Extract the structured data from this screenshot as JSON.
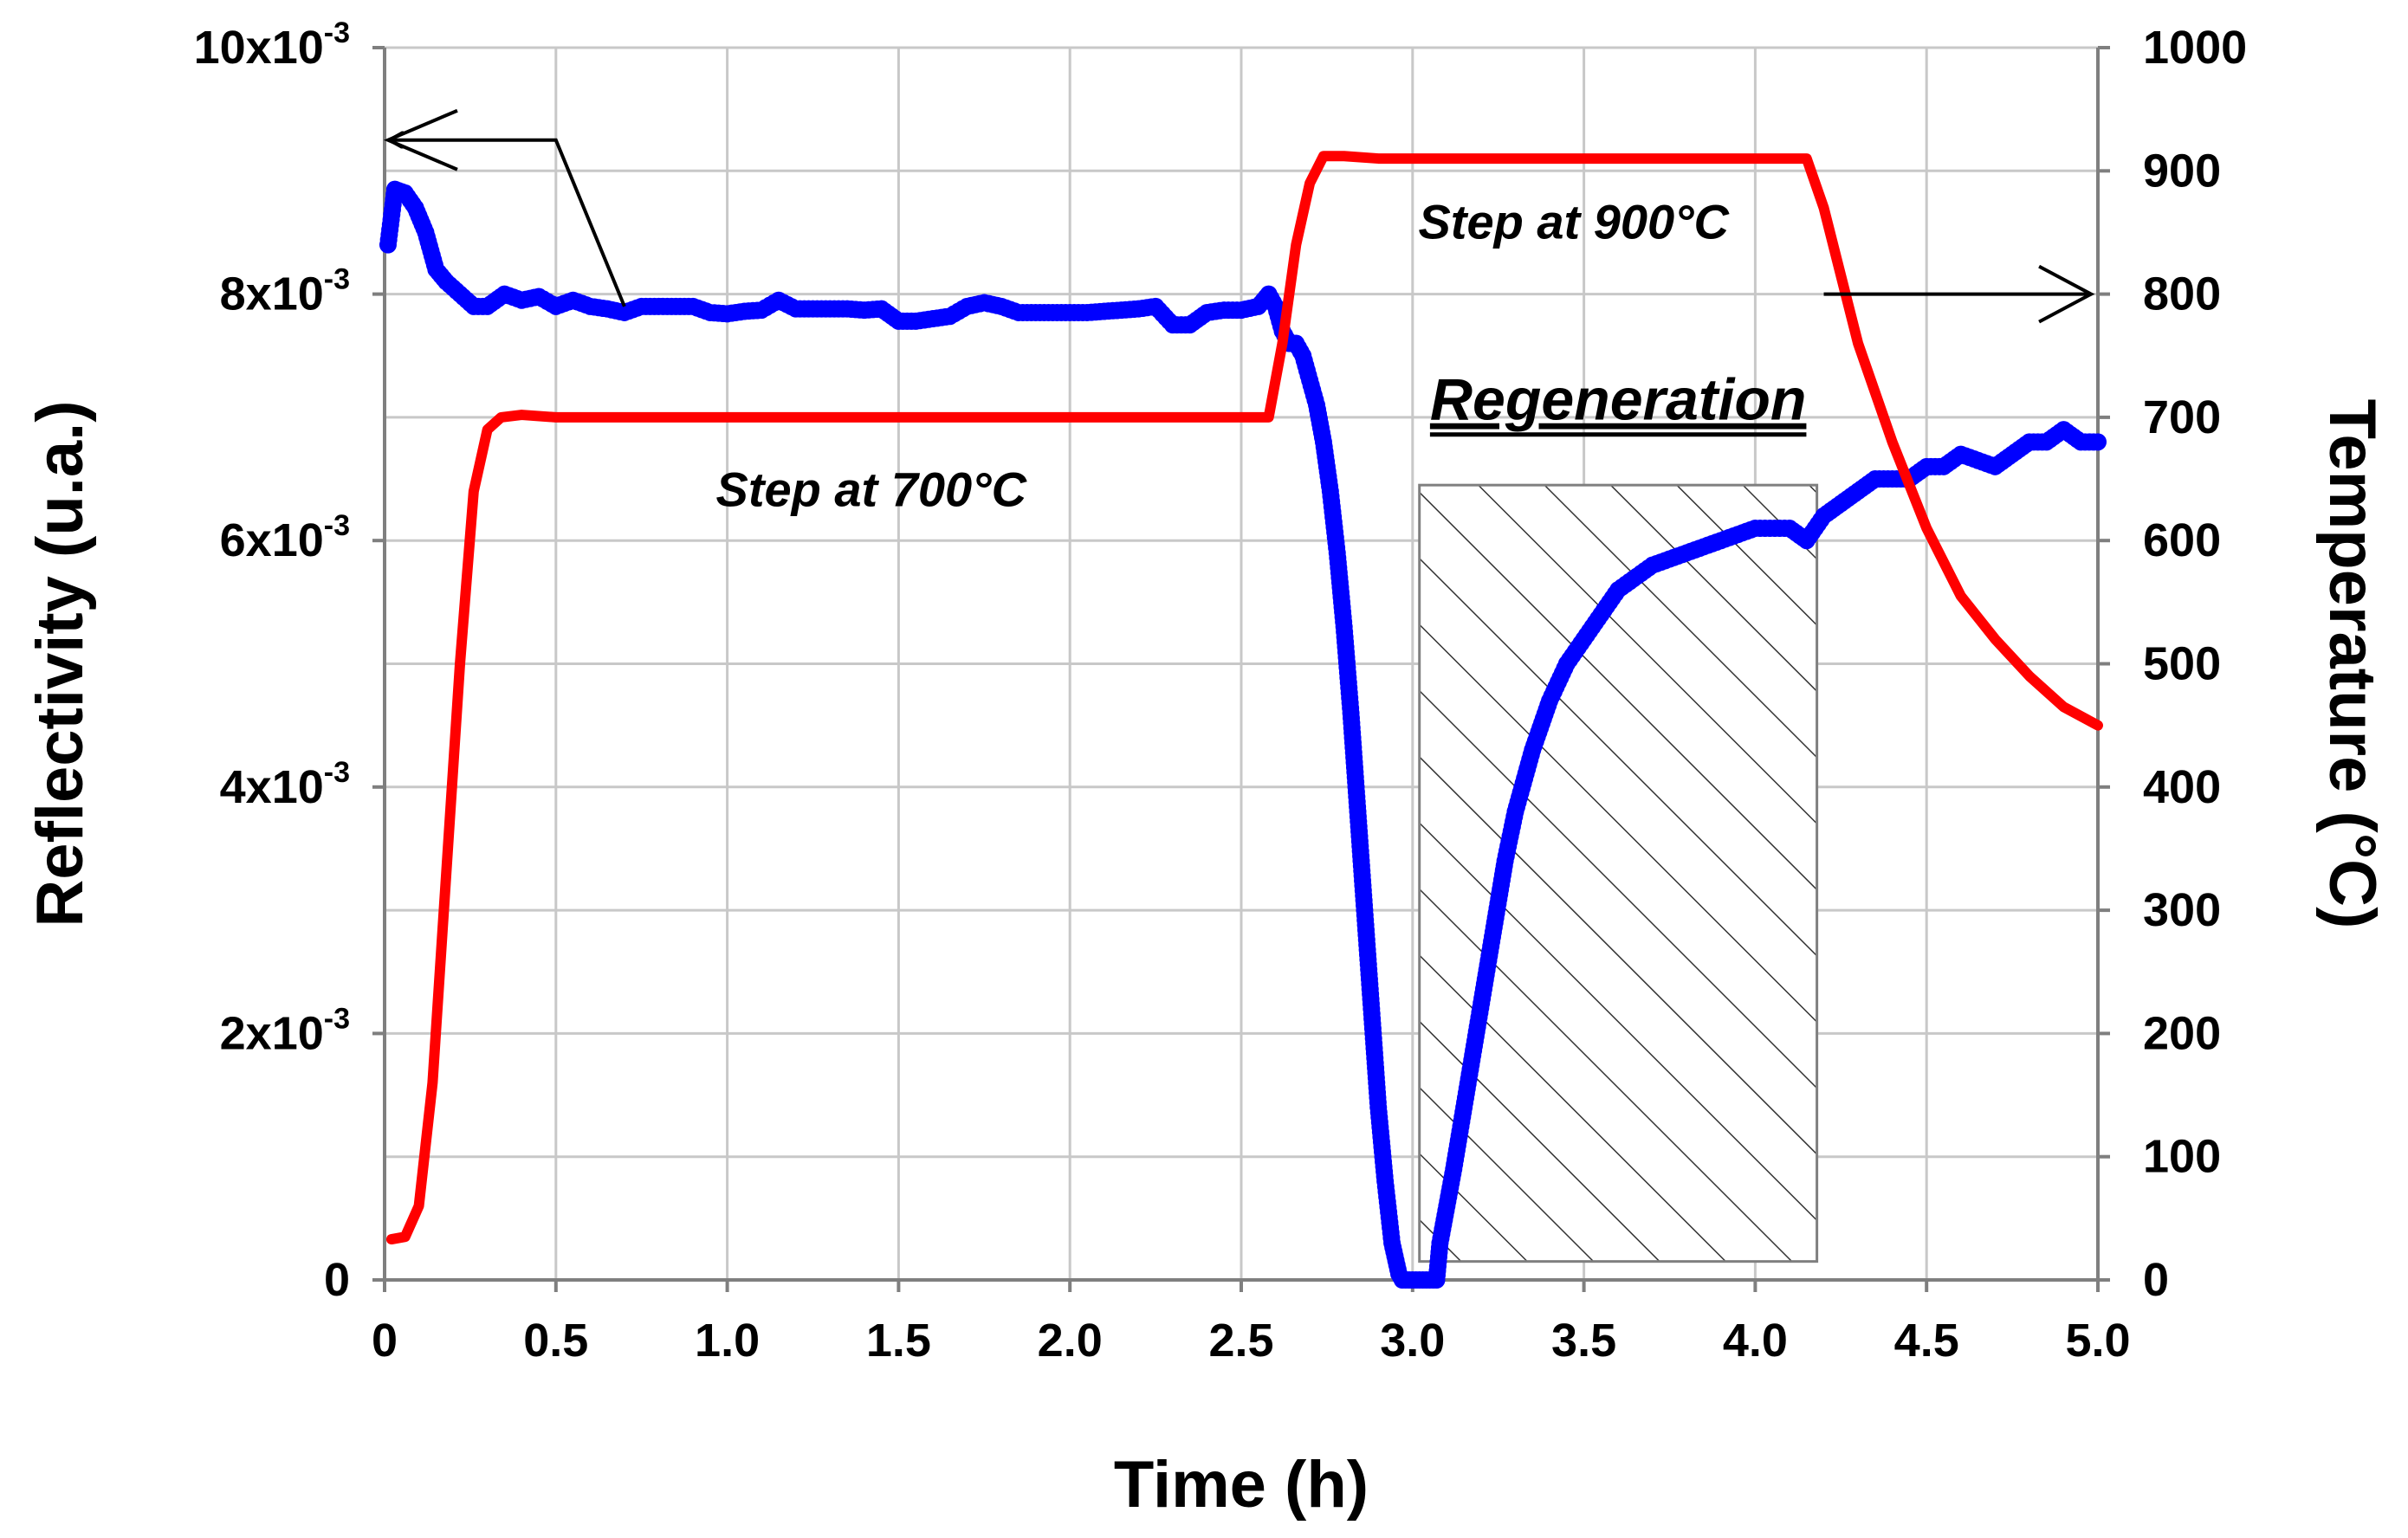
{
  "chart_data": {
    "type": "line",
    "title": "",
    "xlabel": "Time (h)",
    "ylabel": "Reflectivity (u.a.)",
    "y2label": "Temperature (°C)",
    "xlim": [
      0,
      5.0
    ],
    "ylim": [
      0,
      0.01
    ],
    "y2lim": [
      0,
      1000
    ],
    "grid": true,
    "x_ticks": [
      "0",
      "0.5",
      "1.0",
      "1.5",
      "2.0",
      "2.5",
      "3.0",
      "3.5",
      "4.0",
      "4.5",
      "5.0"
    ],
    "x_tick_values": [
      0,
      0.5,
      1.0,
      1.5,
      2.0,
      2.5,
      3.0,
      3.5,
      4.0,
      4.5,
      5.0
    ],
    "y_ticks": [
      {
        "value": 0,
        "base": "0",
        "exp": ""
      },
      {
        "value": 0.002,
        "base": "2x10",
        "exp": "-3"
      },
      {
        "value": 0.004,
        "base": "4x10",
        "exp": "-3"
      },
      {
        "value": 0.006,
        "base": "6x10",
        "exp": "-3"
      },
      {
        "value": 0.008,
        "base": "8x10",
        "exp": "-3"
      },
      {
        "value": 0.01,
        "base": "10x10",
        "exp": "-3"
      }
    ],
    "y2_ticks": [
      "0",
      "100",
      "200",
      "300",
      "400",
      "500",
      "600",
      "700",
      "800",
      "900",
      "1000"
    ],
    "y2_tick_values": [
      0,
      100,
      200,
      300,
      400,
      500,
      600,
      700,
      800,
      900,
      1000
    ],
    "series": [
      {
        "name": "Reflectivity",
        "axis": "left",
        "color": "#0000ff",
        "style": "markers",
        "x": [
          0.01,
          0.03,
          0.06,
          0.09,
          0.12,
          0.15,
          0.18,
          0.22,
          0.26,
          0.3,
          0.35,
          0.4,
          0.45,
          0.5,
          0.55,
          0.6,
          0.65,
          0.7,
          0.75,
          0.8,
          0.85,
          0.9,
          0.95,
          1.0,
          1.05,
          1.1,
          1.15,
          1.2,
          1.25,
          1.3,
          1.35,
          1.4,
          1.45,
          1.5,
          1.55,
          1.6,
          1.65,
          1.7,
          1.75,
          1.8,
          1.85,
          1.9,
          1.95,
          2.0,
          2.05,
          2.1,
          2.15,
          2.2,
          2.25,
          2.3,
          2.35,
          2.4,
          2.45,
          2.5,
          2.55,
          2.58,
          2.6,
          2.62,
          2.64,
          2.66,
          2.68,
          2.7,
          2.72,
          2.74,
          2.76,
          2.78,
          2.8,
          2.82,
          2.84,
          2.86,
          2.88,
          2.9,
          2.92,
          2.94,
          2.96,
          2.97,
          2.98,
          3.0,
          3.02,
          3.04,
          3.06,
          3.07,
          3.08,
          3.1,
          3.12,
          3.15,
          3.18,
          3.21,
          3.24,
          3.27,
          3.3,
          3.35,
          3.4,
          3.45,
          3.5,
          3.55,
          3.6,
          3.7,
          3.8,
          3.9,
          4.0,
          4.1,
          4.15,
          4.2,
          4.25,
          4.3,
          4.35,
          4.4,
          4.45,
          4.5,
          4.55,
          4.6,
          4.65,
          4.7,
          4.75,
          4.8,
          4.85,
          4.9,
          4.95,
          5.0
        ],
        "y": [
          0.0084,
          0.00885,
          0.00882,
          0.0087,
          0.0085,
          0.0082,
          0.0081,
          0.008,
          0.0079,
          0.0079,
          0.008,
          0.00795,
          0.00798,
          0.0079,
          0.00795,
          0.0079,
          0.00788,
          0.00785,
          0.0079,
          0.0079,
          0.0079,
          0.0079,
          0.00785,
          0.00784,
          0.00786,
          0.00787,
          0.00795,
          0.00788,
          0.00788,
          0.00788,
          0.00788,
          0.00787,
          0.00788,
          0.00778,
          0.00778,
          0.0078,
          0.00782,
          0.0079,
          0.00793,
          0.0079,
          0.00785,
          0.00785,
          0.00785,
          0.00785,
          0.00785,
          0.00786,
          0.00787,
          0.00788,
          0.0079,
          0.00775,
          0.00775,
          0.00785,
          0.00787,
          0.00787,
          0.0079,
          0.008,
          0.0079,
          0.0077,
          0.0076,
          0.0076,
          0.0075,
          0.0073,
          0.0071,
          0.0068,
          0.0064,
          0.0059,
          0.0053,
          0.0046,
          0.0038,
          0.003,
          0.0022,
          0.0014,
          0.0008,
          0.0003,
          5e-05,
          0.0,
          0.0,
          0.0,
          0.0,
          0.0,
          0.0,
          0.0,
          0.0003,
          0.0006,
          0.0009,
          0.0014,
          0.0019,
          0.0024,
          0.0029,
          0.0034,
          0.0038,
          0.0043,
          0.0047,
          0.005,
          0.0052,
          0.0054,
          0.0056,
          0.0058,
          0.0059,
          0.006,
          0.0061,
          0.0061,
          0.006,
          0.0062,
          0.0063,
          0.0064,
          0.0065,
          0.0065,
          0.0065,
          0.0066,
          0.0066,
          0.0067,
          0.00665,
          0.0066,
          0.0067,
          0.0068,
          0.0068,
          0.0069,
          0.0068,
          0.0068
        ]
      },
      {
        "name": "Temperature",
        "axis": "right",
        "color": "#ff0000",
        "style": "line",
        "x": [
          0.02,
          0.06,
          0.1,
          0.14,
          0.18,
          0.22,
          0.26,
          0.3,
          0.34,
          0.4,
          0.5,
          1.0,
          1.5,
          2.0,
          2.5,
          2.58,
          2.62,
          2.66,
          2.7,
          2.74,
          2.8,
          2.9,
          3.0,
          3.5,
          4.0,
          4.15,
          4.2,
          4.3,
          4.4,
          4.5,
          4.6,
          4.7,
          4.8,
          4.9,
          5.0
        ],
        "y": [
          33,
          35,
          60,
          160,
          330,
          500,
          640,
          690,
          700,
          702,
          700,
          700,
          700,
          700,
          700,
          700,
          760,
          840,
          890,
          912,
          912,
          910,
          910,
          910,
          910,
          910,
          870,
          760,
          680,
          610,
          555,
          520,
          490,
          465,
          450
        ]
      }
    ],
    "annotations": [
      {
        "text": "Step at 700°C"
      },
      {
        "text": "Step at 900°C"
      },
      {
        "text": "Regeneration",
        "x_range": [
          3.02,
          4.18
        ],
        "y2_range": [
          15,
          645
        ],
        "fill": "hatched"
      }
    ]
  }
}
